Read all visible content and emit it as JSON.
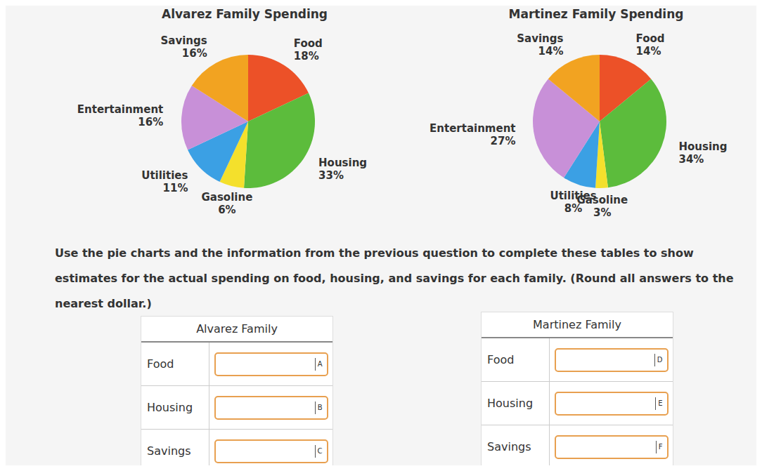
{
  "chart_data": [
    {
      "type": "pie",
      "title": "Alvarez Family Spending",
      "categories": [
        "Food",
        "Housing",
        "Gasoline",
        "Utilities",
        "Entertainment",
        "Savings"
      ],
      "values": [
        18,
        33,
        6,
        11,
        16,
        16
      ],
      "value_labels": [
        "18%",
        "33%",
        "6%",
        "11%",
        "16%",
        "16%"
      ],
      "colors": [
        "#ec5128",
        "#5cbc3c",
        "#f4e02c",
        "#3ba0e4",
        "#c890d8",
        "#f2a321"
      ],
      "data_labels": true
    },
    {
      "type": "pie",
      "title": "Martinez Family Spending",
      "categories": [
        "Food",
        "Housing",
        "Gasoline",
        "Utilities",
        "Entertainment",
        "Savings"
      ],
      "values": [
        14,
        34,
        3,
        8,
        27,
        14
      ],
      "value_labels": [
        "14%",
        "34%",
        "3%",
        "8%",
        "27%",
        "14%"
      ],
      "colors": [
        "#ec5128",
        "#5cbc3c",
        "#f4e02c",
        "#3ba0e4",
        "#c890d8",
        "#f2a321"
      ],
      "data_labels": true
    }
  ],
  "instructions": "Use the pie charts and the information from the previous question to complete these tables to show estimates for the actual spending on food, housing, and savings for each family. (Round all answers to the nearest dollar.)",
  "tables": [
    {
      "title": "Alvarez Family",
      "rows": [
        [
          "Food",
          "A"
        ],
        [
          "Housing",
          "B"
        ],
        [
          "Savings",
          "C"
        ]
      ]
    },
    {
      "title": "Martinez Family",
      "rows": [
        [
          "Food",
          "D"
        ],
        [
          "Housing",
          "E"
        ],
        [
          "Savings",
          "F"
        ]
      ]
    }
  ]
}
